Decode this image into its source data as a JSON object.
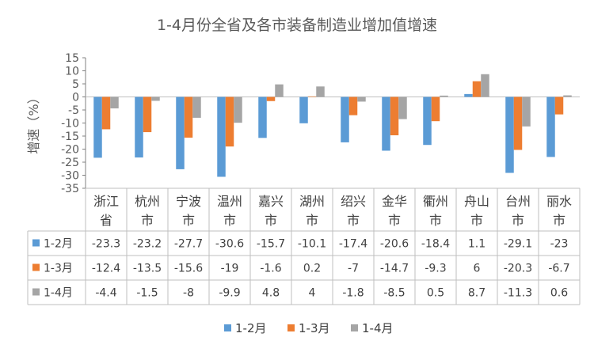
{
  "chart_data": {
    "type": "bar",
    "title": "1-4月份全省及各市装备制造业增加值增速",
    "ylabel": "增速（%）",
    "xlabel": "",
    "ylim": [
      -35,
      15
    ],
    "yticks": [
      15,
      10,
      5,
      0,
      -5,
      -10,
      -15,
      -20,
      -25,
      -30,
      -35
    ],
    "grid": false,
    "legend": "bottom",
    "data_table": true,
    "categories": [
      [
        "浙江",
        "省"
      ],
      [
        "杭州",
        "市"
      ],
      [
        "宁波",
        "市"
      ],
      [
        "温州",
        "市"
      ],
      [
        "嘉兴",
        "市"
      ],
      [
        "湖州",
        "市"
      ],
      [
        "绍兴",
        "市"
      ],
      [
        "金华",
        "市"
      ],
      [
        "衢州",
        "市"
      ],
      [
        "舟山",
        "市"
      ],
      [
        "台州",
        "市"
      ],
      [
        "丽水",
        "市"
      ]
    ],
    "series": [
      {
        "name": "1-2月",
        "color": "#5B9BD5",
        "values": [
          -23.3,
          -23.2,
          -27.7,
          -30.6,
          -15.7,
          -10.1,
          -17.4,
          -20.6,
          -18.4,
          1.1,
          -29.1,
          -23
        ],
        "labels": [
          "-23.3",
          "-23.2",
          "-27.7",
          "-30.6",
          "-15.7",
          "-10.1",
          "-17.4",
          "-20.6",
          "-18.4",
          "1.1",
          "-29.1",
          "-23"
        ]
      },
      {
        "name": "1-3月",
        "color": "#ED7D31",
        "values": [
          -12.4,
          -13.5,
          -15.6,
          -19,
          -1.6,
          0.2,
          -7,
          -14.7,
          -9.3,
          6,
          -20.3,
          -6.7
        ],
        "labels": [
          "-12.4",
          "-13.5",
          "-15.6",
          "-19",
          "-1.6",
          "0.2",
          "-7",
          "-14.7",
          "-9.3",
          "6",
          "-20.3",
          "-6.7"
        ]
      },
      {
        "name": "1-4月",
        "color": "#A5A5A5",
        "values": [
          -4.4,
          -1.5,
          -8,
          -9.9,
          4.8,
          4,
          -1.8,
          -8.5,
          0.5,
          8.7,
          -11.3,
          0.6
        ],
        "labels": [
          "-4.4",
          "-1.5",
          "-8",
          "-9.9",
          "4.8",
          "4",
          "-1.8",
          "-8.5",
          "0.5",
          "8.7",
          "-11.3",
          "0.6"
        ]
      }
    ]
  }
}
